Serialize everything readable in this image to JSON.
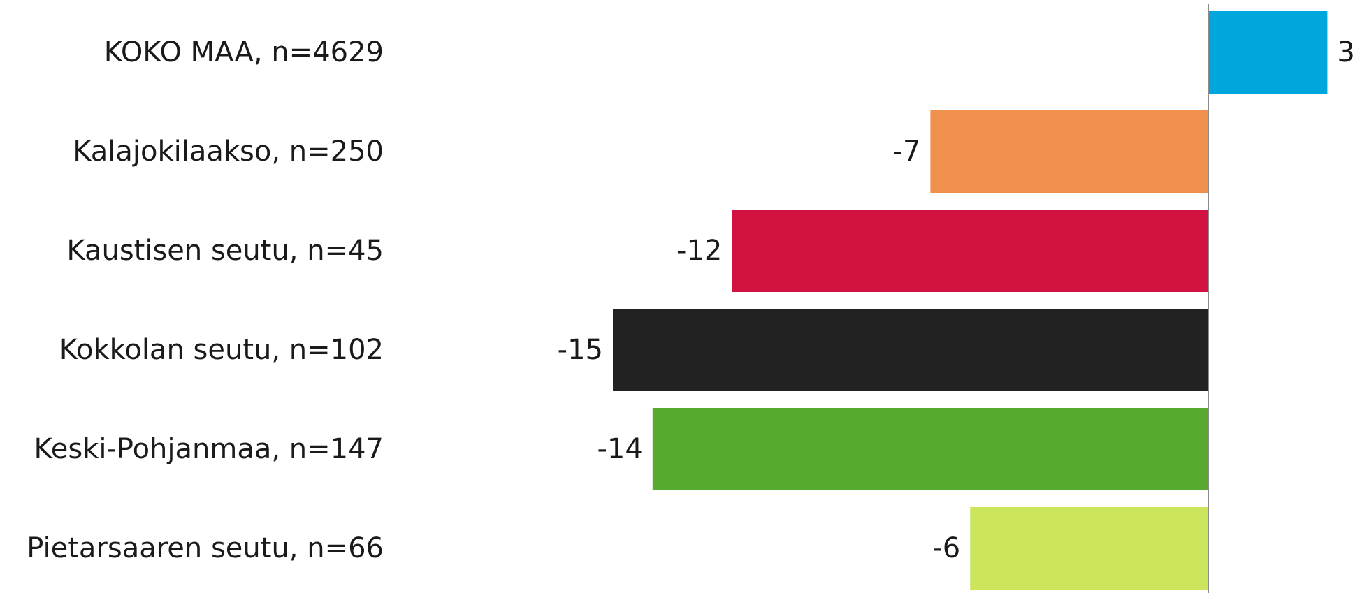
{
  "chart_data": {
    "type": "bar",
    "orientation": "horizontal",
    "categories": [
      "KOKO MAA, n=4629",
      "Kalajokilaakso, n=250",
      "Kaustisen seutu, n=45",
      "Kokkolan seutu, n=102",
      "Keski-Pohjanmaa, n=147",
      "Pietarsaaren seutu, n=66"
    ],
    "values": [
      3,
      -7,
      -12,
      -15,
      -14,
      -6
    ],
    "value_labels": [
      "3",
      "-7",
      "-12",
      "-15",
      "-14",
      "-6"
    ],
    "colors": [
      "#00a6dc",
      "#ef914c",
      "#d1113f",
      "#222222",
      "#57aa2e",
      "#cbe65d"
    ],
    "xlim": [
      -15,
      3
    ],
    "grid": false,
    "legend": "none",
    "title": "",
    "xlabel": "",
    "ylabel": ""
  }
}
